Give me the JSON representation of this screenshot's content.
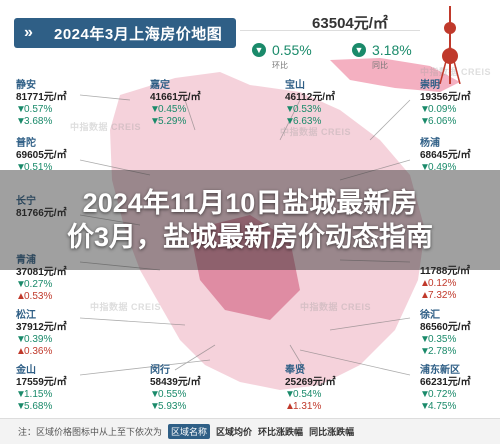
{
  "header": {
    "title": "2024年3月上海房价地图",
    "avg_price": "63504元/㎡",
    "stat_left": {
      "value": "0.55%",
      "label": "环比"
    },
    "stat_right": {
      "value": "3.18%",
      "label": "同比"
    }
  },
  "districts": [
    {
      "name": "静安",
      "price": "81771元/㎡",
      "mom": "0.57%",
      "yoy": "3.68%",
      "mom_dir": "down",
      "yoy_dir": "down"
    },
    {
      "name": "普陀",
      "price": "69605元/㎡",
      "mom": "0.51%",
      "yoy": "",
      "mom_dir": "down",
      "yoy_dir": "down"
    },
    {
      "name": "长宁",
      "price": "81766元/㎡",
      "mom": "",
      "yoy": "",
      "mom_dir": "down",
      "yoy_dir": "down"
    },
    {
      "name": "青浦",
      "price": "37081元/㎡",
      "mom": "0.27%",
      "yoy": "0.53%",
      "mom_dir": "down",
      "yoy_dir": "up"
    },
    {
      "name": "松江",
      "price": "37912元/㎡",
      "mom": "0.39%",
      "yoy": "0.36%",
      "mom_dir": "down",
      "yoy_dir": "up"
    },
    {
      "name": "金山",
      "price": "17559元/㎡",
      "mom": "1.15%",
      "yoy": "5.68%",
      "mom_dir": "down",
      "yoy_dir": "down"
    },
    {
      "name": "嘉定",
      "price": "41661元/㎡",
      "mom": "0.45%",
      "yoy": "5.29%",
      "mom_dir": "down",
      "yoy_dir": "down"
    },
    {
      "name": "闵行",
      "price": "58439元/㎡",
      "mom": "0.55%",
      "yoy": "5.93%",
      "mom_dir": "down",
      "yoy_dir": "down"
    },
    {
      "name": "宝山",
      "price": "46112元/㎡",
      "mom": "0.53%",
      "yoy": "6.63%",
      "mom_dir": "down",
      "yoy_dir": "down"
    },
    {
      "name": "奉贤",
      "price": "25269元/㎡",
      "mom": "0.54%",
      "yoy": "1.31%",
      "mom_dir": "down",
      "yoy_dir": "up"
    },
    {
      "name": "崇明",
      "price": "19356元/㎡",
      "mom": "0.09%",
      "yoy": "6.06%",
      "mom_dir": "down",
      "yoy_dir": "down"
    },
    {
      "name": "杨浦",
      "price": "68645元/㎡",
      "mom": "0.49%",
      "yoy": "",
      "mom_dir": "down",
      "yoy_dir": "down"
    },
    {
      "name": "",
      "price": "11788元/㎡",
      "mom": "0.12%",
      "yoy": "7.32%",
      "mom_dir": "up",
      "yoy_dir": "up"
    },
    {
      "name": "徐汇",
      "price": "86560元/㎡",
      "mom": "0.35%",
      "yoy": "2.78%",
      "mom_dir": "down",
      "yoy_dir": "down"
    },
    {
      "name": "浦东新区",
      "price": "66231元/㎡",
      "mom": "0.72%",
      "yoy": "4.75%",
      "mom_dir": "down",
      "yoy_dir": "down"
    }
  ],
  "headline": {
    "line1": "2024年11月10日盐城最新房",
    "line2": "价3月，盐城最新房价动态指南"
  },
  "watermark": "中指数据 CREIS",
  "footer": {
    "note": "注：区域价格图标中从上至下依次为",
    "k1": "区域名称",
    "k2": "区域均价",
    "k3": "环比涨跌幅",
    "k4": "同比涨跌幅"
  },
  "colors": {
    "badge": "#2f5f86",
    "down": "#1a8a6a",
    "up": "#c0392b",
    "map": "#e8a6b6"
  }
}
